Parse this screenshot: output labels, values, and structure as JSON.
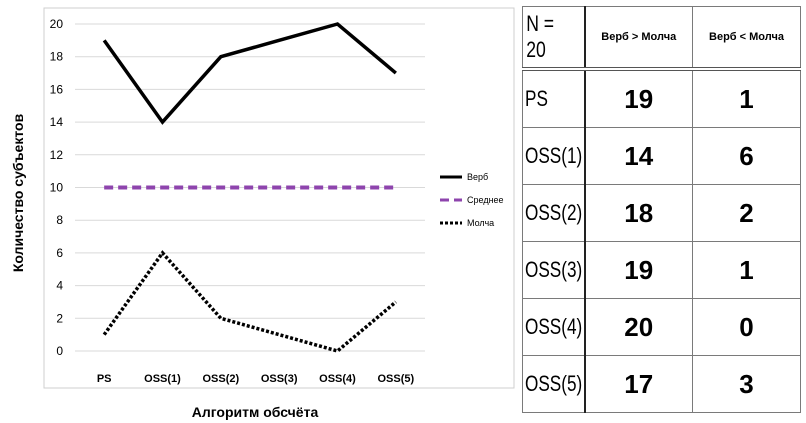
{
  "chart_data": {
    "type": "line",
    "categories": [
      "PS",
      "OSS(1)",
      "OSS(2)",
      "OSS(3)",
      "OSS(4)",
      "OSS(5)"
    ],
    "series": [
      {
        "name": "Верб",
        "values": [
          19,
          14,
          18,
          19,
          20,
          17
        ],
        "style": "solid",
        "color": "#000000"
      },
      {
        "name": "Среднее",
        "values": [
          10,
          10,
          10,
          10,
          10,
          10
        ],
        "style": "dashed",
        "color": "#8e44ad"
      },
      {
        "name": "Молча",
        "values": [
          1,
          6,
          2,
          1,
          0,
          3
        ],
        "style": "dotted",
        "color": "#000000"
      }
    ],
    "yticks": [
      "0",
      "2",
      "4",
      "6",
      "8",
      "10",
      "12",
      "14",
      "16",
      "18",
      "20"
    ],
    "ylim": [
      0,
      20
    ],
    "xlabel": "Алгоритм обсчёта",
    "ylabel": "Количество субъектов",
    "title": "",
    "legend_placement": "right",
    "grid": true
  },
  "table": {
    "n_label": "N = 20",
    "headers": [
      "Верб > Молча",
      "Верб < Молча"
    ],
    "rows": [
      {
        "label": "PS",
        "a": "19",
        "b": "1"
      },
      {
        "label": "OSS(1)",
        "a": "14",
        "b": "6"
      },
      {
        "label": "OSS(2)",
        "a": "18",
        "b": "2"
      },
      {
        "label": "OSS(3)",
        "a": "19",
        "b": "1"
      },
      {
        "label": "OSS(4)",
        "a": "20",
        "b": "0"
      },
      {
        "label": "OSS(5)",
        "a": "17",
        "b": "3"
      }
    ]
  }
}
